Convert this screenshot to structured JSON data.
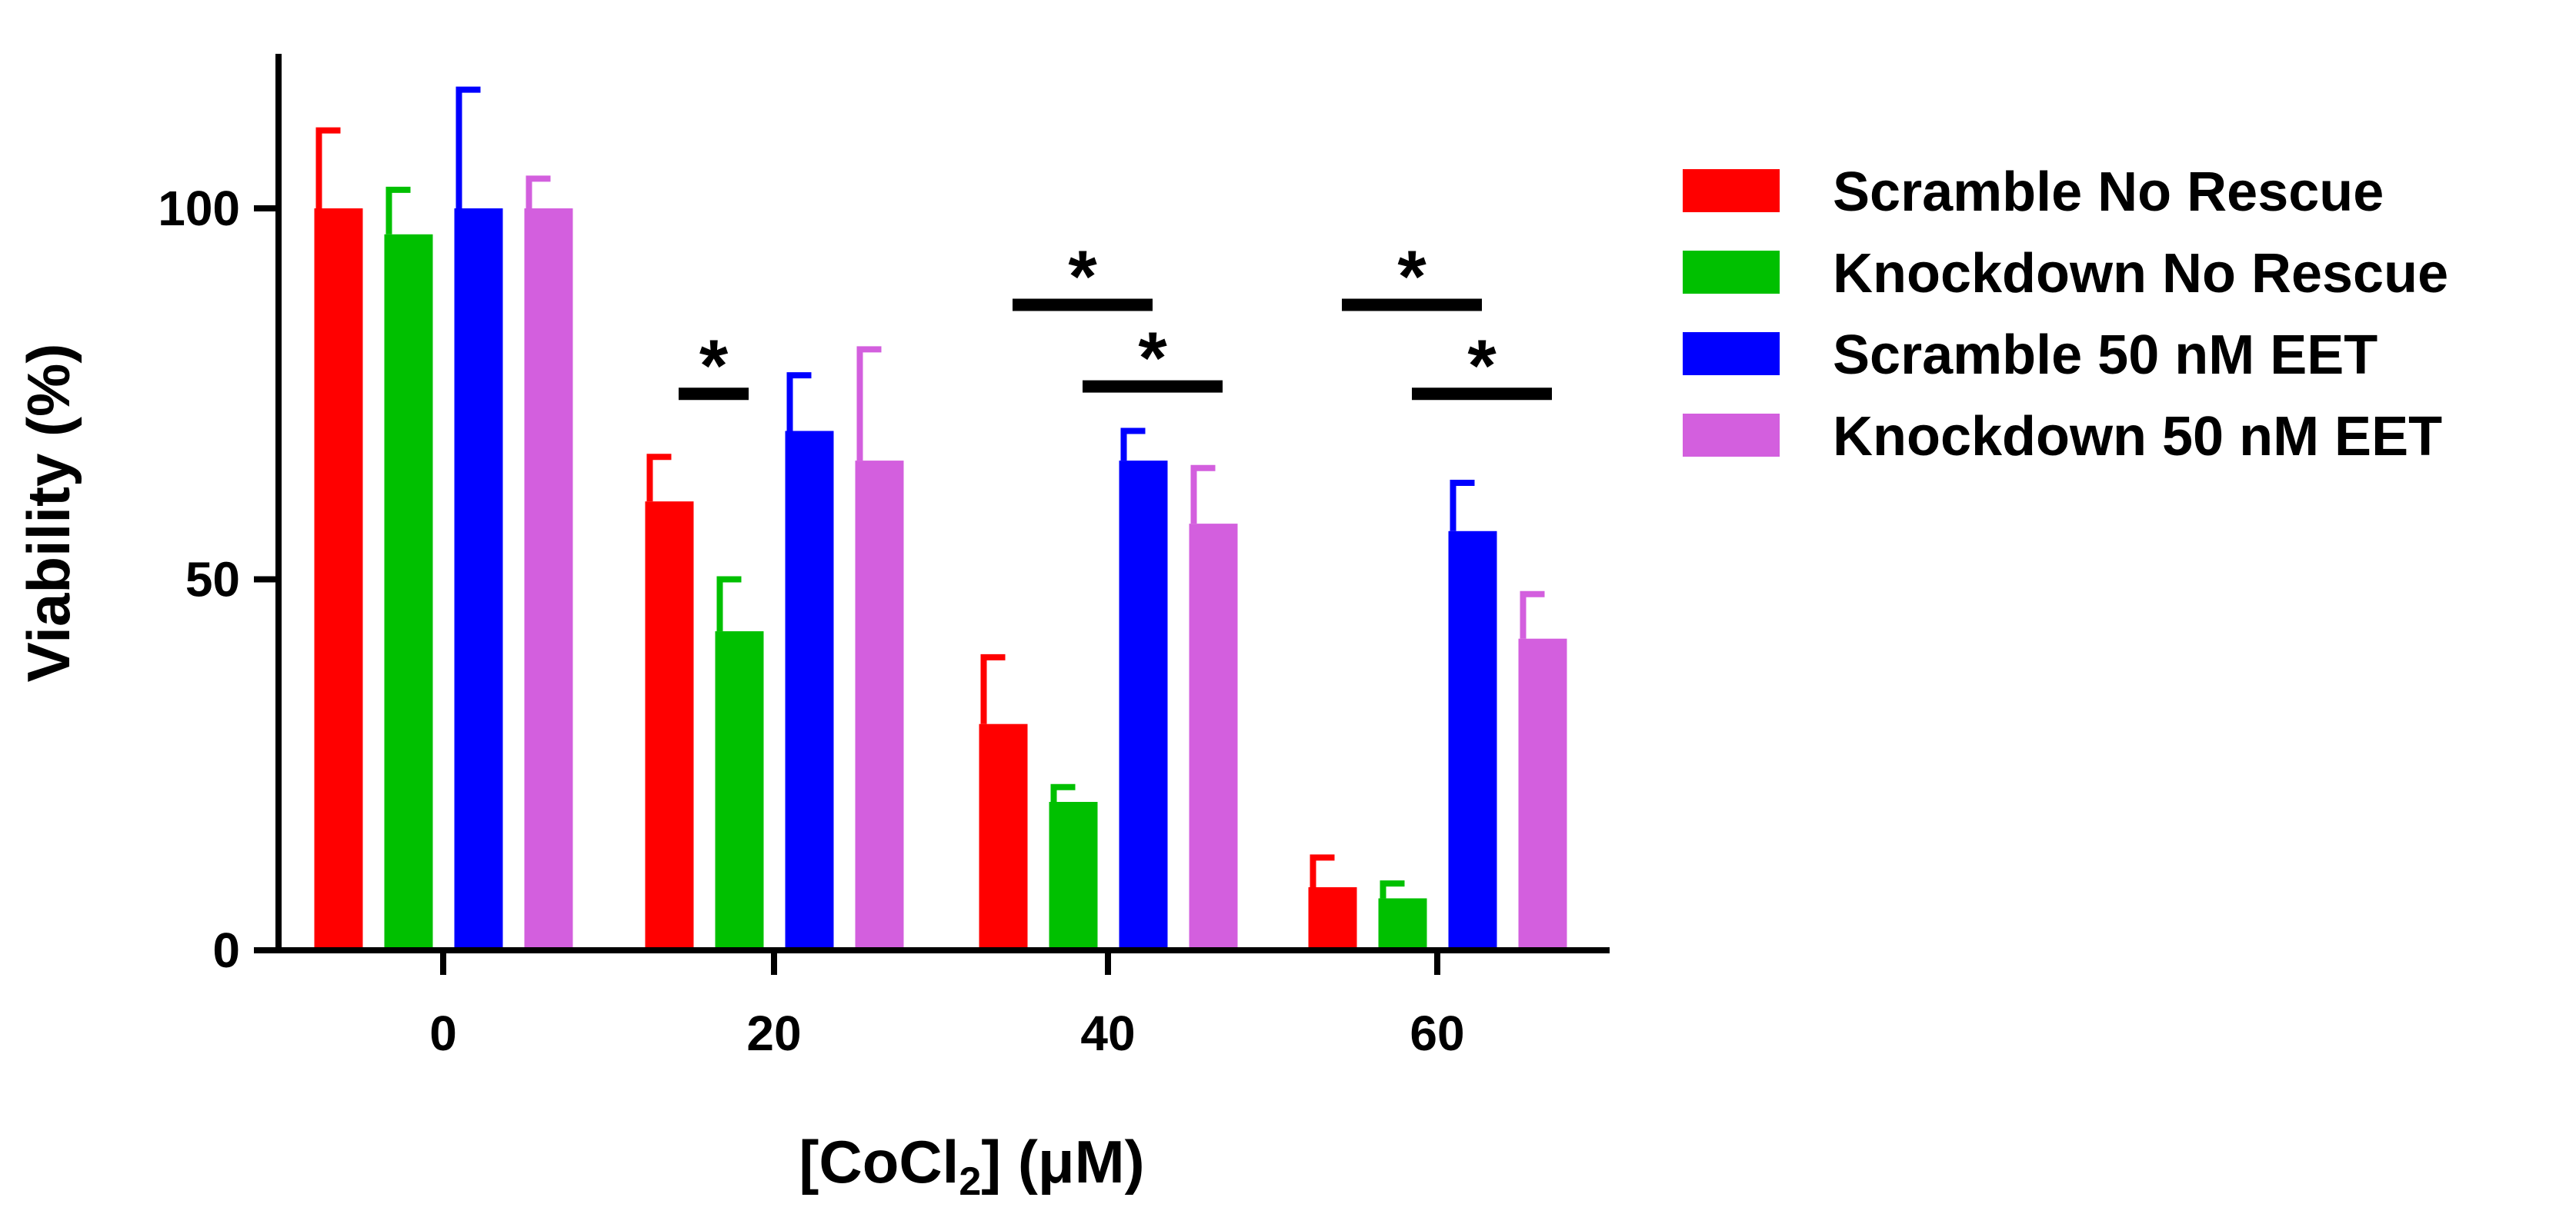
{
  "chart_data": {
    "type": "bar",
    "title": "",
    "xlabel_main": "[CoCl",
    "xlabel_sub": "2",
    "xlabel_tail": "] (μM)",
    "ylabel": "Viability (%)",
    "ylim": [
      0,
      120
    ],
    "yticks": [
      0,
      50,
      100
    ],
    "yticks_text": [
      "0",
      "50",
      "100"
    ],
    "categories": [
      "0",
      "20",
      "40",
      "60"
    ],
    "legend_position": "right",
    "series": [
      {
        "name": "Scramble No Rescue",
        "color": "#ff0000",
        "values": [
          100,
          60.5,
          30.5,
          8.5
        ],
        "errors": [
          10.5,
          6,
          9,
          4
        ]
      },
      {
        "name": "Knockdown No Rescue",
        "color": "#00c000",
        "values": [
          96.5,
          43,
          20,
          7
        ],
        "errors": [
          6,
          7,
          2,
          2
        ]
      },
      {
        "name": "Scramble 50 nM EET",
        "color": "#0000ff",
        "values": [
          100,
          70,
          66,
          56.5
        ],
        "errors": [
          16,
          7.5,
          4,
          6.5
        ]
      },
      {
        "name": "Knockdown 50 nM EET",
        "color": "#d35fde",
        "values": [
          100,
          66,
          57.5,
          42
        ],
        "errors": [
          4,
          15,
          7.5,
          6
        ]
      }
    ],
    "annotations": [
      {
        "text": "*",
        "category": 1,
        "from_series": 0,
        "to_series": 1,
        "level": 75
      },
      {
        "text": "*",
        "category": 2,
        "from_series": 0,
        "to_series": 2,
        "level": 87
      },
      {
        "text": "*",
        "category": 2,
        "from_series": 1,
        "to_series": 3,
        "level": 76
      },
      {
        "text": "*",
        "category": 3,
        "from_series": 0,
        "to_series": 2,
        "level": 87
      },
      {
        "text": "*",
        "category": 3,
        "from_series": 1,
        "to_series": 3,
        "level": 75
      }
    ]
  }
}
